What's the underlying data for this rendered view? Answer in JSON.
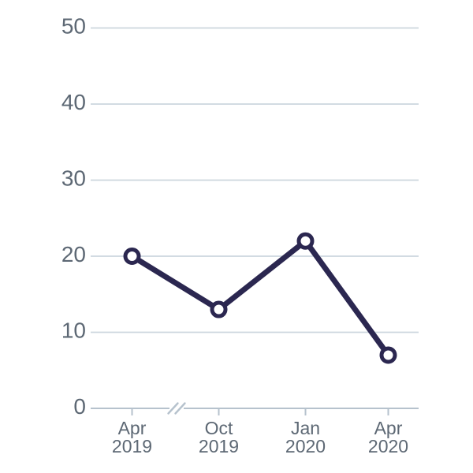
{
  "chart_data": {
    "type": "line",
    "categories": [
      "Apr 2019",
      "Oct 2019",
      "Jan 2020",
      "Apr 2020"
    ],
    "values": [
      20,
      13,
      22,
      7
    ],
    "series_name": "value",
    "title": "",
    "xlabel": "",
    "ylabel": "",
    "ylim": [
      0,
      50
    ],
    "yticks": [
      0,
      10,
      20,
      30,
      40,
      50
    ],
    "grid": true,
    "legend": false,
    "x_axis_break_after_index": 0,
    "marker_style": "open-circle",
    "colors": {
      "line": "#2b2750",
      "marker_fill": "#ffffff",
      "grid": "#ccd6de",
      "axis": "#b6c2cd",
      "label": "#5d6874"
    }
  }
}
